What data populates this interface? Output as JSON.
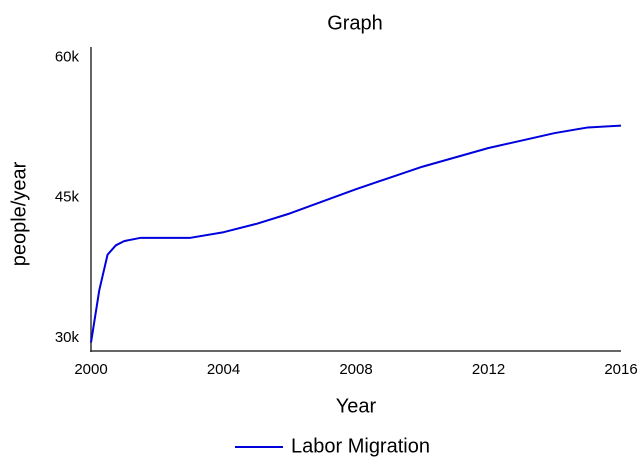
{
  "chart_data": {
    "type": "line",
    "title": "Graph",
    "x_label": "Year",
    "y_label": "people/year",
    "x": [
      2000,
      2000.25,
      2000.5,
      2000.75,
      2001,
      2001.5,
      2002,
      2003,
      2004,
      2005,
      2006,
      2007,
      2008,
      2009,
      2010,
      2011,
      2012,
      2013,
      2014,
      2015,
      2016
    ],
    "series": [
      {
        "name": "Labor Migration",
        "color": "#0000dd",
        "values": [
          29500,
          35100,
          38900,
          39900,
          40350,
          40700,
          40700,
          40700,
          41300,
          42200,
          43300,
          44600,
          45900,
          47100,
          48300,
          49300,
          50300,
          51100,
          51900,
          52500,
          52700
        ]
      }
    ],
    "xlim": [
      2000,
      2016
    ],
    "xticks": [
      2000,
      2004,
      2008,
      2012,
      2016
    ],
    "ylim": [
      28600,
      61100
    ],
    "yticks": [
      {
        "value": 30000,
        "label": "30k"
      },
      {
        "value": 45000,
        "label": "45k"
      },
      {
        "value": 60000,
        "label": "60k"
      }
    ],
    "grid": false,
    "legend": "bottom"
  }
}
